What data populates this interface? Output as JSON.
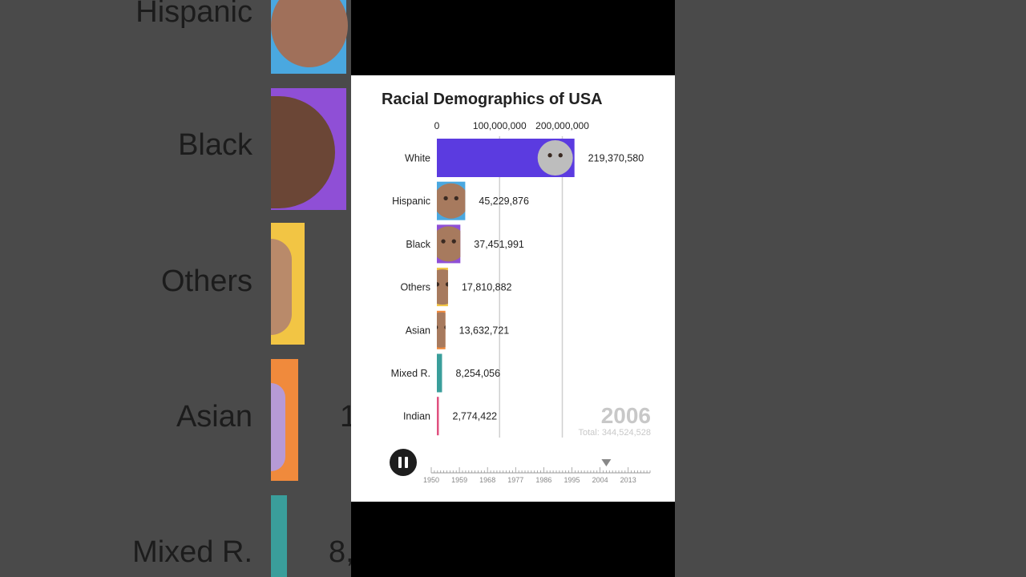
{
  "chart_data": {
    "type": "bar",
    "title": "Racial Demographics of USA",
    "orientation": "horizontal",
    "categories": [
      "White",
      "Hispanic",
      "Black",
      "Others",
      "Asian",
      "Mixed R.",
      "Indian"
    ],
    "values": [
      219370580,
      45229876,
      37451991,
      17810882,
      13632721,
      8254056,
      2774422
    ],
    "value_labels": [
      "219,370,580",
      "45,229,876",
      "37,451,991",
      "17,810,882",
      "13,632,721",
      "8,254,056",
      "2,774,422"
    ],
    "colors": [
      "#5b3be0",
      "#4aa8e0",
      "#8f4fd6",
      "#f2c544",
      "#f08a3c",
      "#3a9e9b",
      "#e0517f"
    ],
    "xticks": [
      0,
      100000000,
      200000000
    ],
    "xtick_labels": [
      "0",
      "100,000,000",
      "200,000,000"
    ],
    "xlim": [
      0,
      230000000
    ],
    "grid": true,
    "year": "2006",
    "total_label": "Total: 344,524,528"
  },
  "timeline": {
    "labels": [
      "1950",
      "1959",
      "1968",
      "1977",
      "1986",
      "1995",
      "2004",
      "2013"
    ],
    "start_year": 1950,
    "end_year": 2020,
    "current_year": 2006
  },
  "background": {
    "left_labels": [
      "Hispanic",
      "Black",
      "Others",
      "Asian",
      "Mixed R."
    ],
    "left_numbers": [
      "1",
      "8,"
    ]
  }
}
